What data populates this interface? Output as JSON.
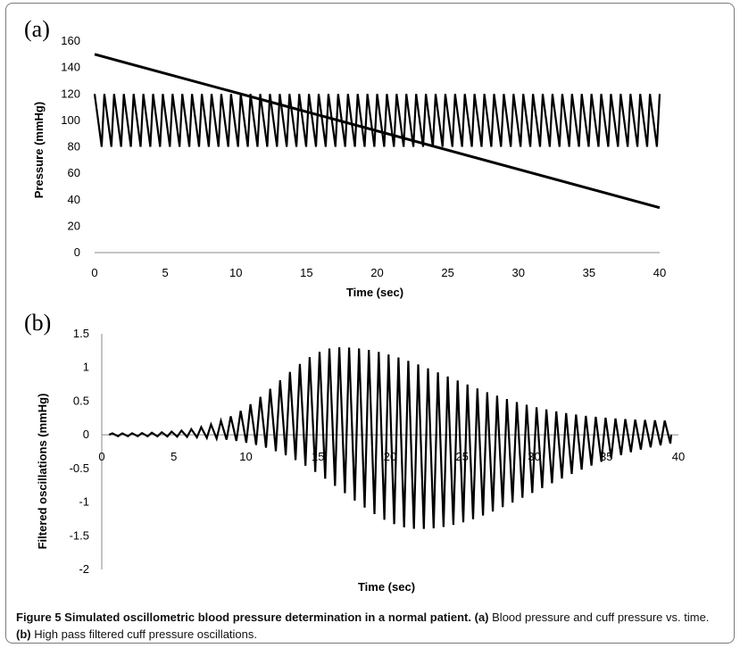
{
  "caption": {
    "figure_label": "Figure 5 Simulated oscillometric blood pressure determination in a normal patient.",
    "part_a_label": "(a)",
    "part_a_text": "Blood pressure and cuff pressure vs. time.",
    "part_b_label": "(b)",
    "part_b_text": "High pass filtered cuff pressure oscillations."
  },
  "chart_data": [
    {
      "panel": "(a)",
      "type": "line",
      "xlabel": "Time (sec)",
      "ylabel": "Pressure (mmHg)",
      "xlim": [
        0,
        40
      ],
      "ylim": [
        0,
        160
      ],
      "xticks": [
        0,
        5,
        10,
        15,
        20,
        25,
        30,
        35,
        40
      ],
      "yticks": [
        0,
        20,
        40,
        60,
        80,
        100,
        120,
        140,
        160
      ],
      "grid": false,
      "series": [
        {
          "kind": "blood-pressure",
          "waveform": "sawtooth",
          "min": 80,
          "max": 120,
          "cycles": 58,
          "x_range": [
            0,
            40
          ]
        },
        {
          "kind": "cuff-pressure",
          "points": [
            [
              0,
              150
            ],
            [
              40,
              34
            ]
          ]
        }
      ]
    },
    {
      "panel": "(b)",
      "type": "line",
      "xlabel": "Time (sec)",
      "ylabel": "Filtered oscillations (mmHg)",
      "xlim": [
        0,
        40
      ],
      "ylim": [
        -2,
        1.5
      ],
      "xticks": [
        0,
        5,
        10,
        15,
        20,
        25,
        30,
        35,
        40
      ],
      "yticks": [
        -2,
        -1.5,
        -1,
        -0.5,
        0,
        0.5,
        1,
        1.5
      ],
      "grid": false,
      "series": [
        {
          "kind": "filtered-oscillations",
          "cycles": 57,
          "x_range": [
            0.5,
            39.5
          ],
          "peak_time": 16.5,
          "peak_amplitude": 1.3,
          "trough_time": 22,
          "trough_amplitude": -1.4,
          "end_amplitude": 0.2
        }
      ]
    }
  ]
}
